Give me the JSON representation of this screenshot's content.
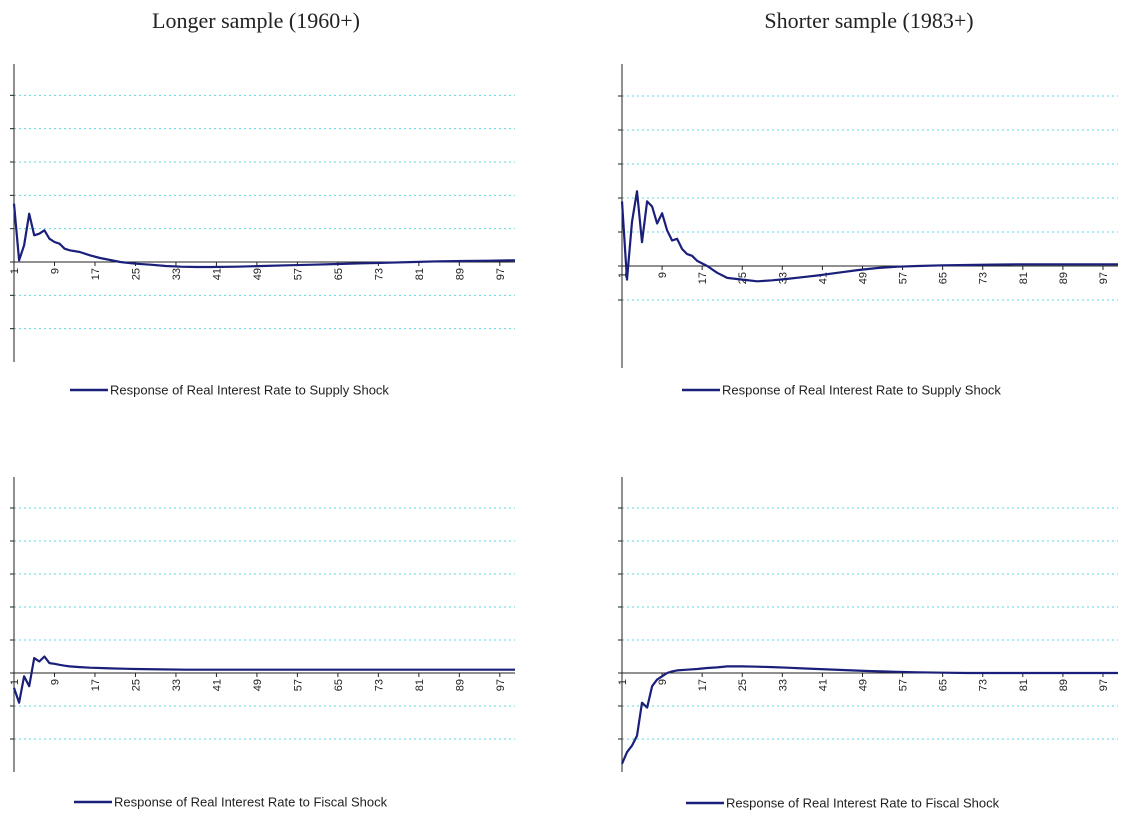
{
  "titles": {
    "left": "Longer sample (1960+)",
    "right": "Shorter sample (1983+)"
  },
  "colors": {
    "series": "#1a1f7a",
    "grid": "#5fd6e0",
    "axis": "#222222"
  },
  "chart_data": [
    {
      "type": "line",
      "legend": "Response of Real Interest Rate to Supply Shock",
      "x_ticks": [
        "1",
        "9",
        "17",
        "25",
        "33",
        "41",
        "49",
        "57",
        "65",
        "73",
        "81",
        "89",
        "97"
      ],
      "ylim": [
        -3,
        6
      ],
      "gridlines": [
        -2,
        -1,
        1,
        2,
        3,
        4,
        5
      ],
      "grid": true,
      "x": [
        1,
        2,
        3,
        4,
        5,
        6,
        7,
        8,
        9,
        10,
        11,
        12,
        14,
        16,
        18,
        20,
        22,
        25,
        28,
        31,
        34,
        37,
        40,
        45,
        50,
        55,
        60,
        65,
        70,
        75,
        80,
        85,
        90,
        95,
        100
      ],
      "y": [
        1.75,
        0.05,
        0.5,
        1.45,
        0.8,
        0.85,
        0.95,
        0.7,
        0.6,
        0.55,
        0.4,
        0.35,
        0.3,
        0.2,
        0.12,
        0.06,
        0.0,
        -0.05,
        -0.08,
        -0.12,
        -0.14,
        -0.15,
        -0.15,
        -0.14,
        -0.12,
        -0.1,
        -0.08,
        -0.06,
        -0.04,
        -0.02,
        0.0,
        0.02,
        0.03,
        0.04,
        0.05
      ]
    },
    {
      "type": "line",
      "legend": "Response of Real Interest Rate to Supply Shock",
      "x_ticks": [
        "1",
        "9",
        "17",
        "25",
        "33",
        "41",
        "49",
        "57",
        "65",
        "73",
        "81",
        "89",
        "97"
      ],
      "ylim": [
        -3,
        6
      ],
      "gridlines": [
        -1,
        1,
        2,
        3,
        4,
        5
      ],
      "grid": true,
      "x": [
        1,
        2,
        3,
        4,
        5,
        6,
        7,
        8,
        9,
        10,
        11,
        12,
        13,
        14,
        15,
        16,
        18,
        20,
        22,
        25,
        28,
        31,
        34,
        37,
        40,
        44,
        48,
        52,
        56,
        60,
        65,
        70,
        75,
        80,
        85,
        90,
        95,
        100
      ],
      "y": [
        1.9,
        -0.4,
        1.3,
        2.2,
        0.7,
        1.9,
        1.75,
        1.25,
        1.55,
        1.05,
        0.75,
        0.8,
        0.5,
        0.35,
        0.3,
        0.15,
        0.0,
        -0.2,
        -0.35,
        -0.4,
        -0.45,
        -0.42,
        -0.38,
        -0.33,
        -0.28,
        -0.2,
        -0.12,
        -0.06,
        -0.02,
        0.0,
        0.02,
        0.03,
        0.04,
        0.05,
        0.05,
        0.05,
        0.05,
        0.05
      ]
    },
    {
      "type": "line",
      "legend": "Response of Real Interest Rate to Fiscal Shock",
      "x_ticks": [
        "1",
        "9",
        "17",
        "25",
        "33",
        "41",
        "49",
        "57",
        "65",
        "73",
        "81",
        "89",
        "97"
      ],
      "ylim": [
        -3,
        6
      ],
      "gridlines": [
        -2,
        -1,
        1,
        2,
        3,
        4,
        5
      ],
      "grid": true,
      "x": [
        1,
        2,
        3,
        4,
        5,
        6,
        7,
        8,
        9,
        10,
        11,
        12,
        14,
        16,
        18,
        20,
        25,
        30,
        35,
        40,
        45,
        50,
        55,
        60,
        65,
        70,
        75,
        80,
        85,
        90,
        95,
        100
      ],
      "y": [
        -0.45,
        -0.9,
        -0.1,
        -0.4,
        0.45,
        0.35,
        0.5,
        0.3,
        0.28,
        0.25,
        0.22,
        0.2,
        0.18,
        0.16,
        0.15,
        0.14,
        0.12,
        0.11,
        0.1,
        0.1,
        0.1,
        0.1,
        0.1,
        0.1,
        0.1,
        0.1,
        0.1,
        0.1,
        0.1,
        0.1,
        0.1,
        0.1
      ]
    },
    {
      "type": "line",
      "legend": "Response of Real Interest Rate to Fiscal Shock",
      "x_ticks": [
        "1",
        "9",
        "17",
        "25",
        "33",
        "41",
        "49",
        "57",
        "65",
        "73",
        "81",
        "89",
        "97"
      ],
      "ylim": [
        -3,
        6
      ],
      "gridlines": [
        -2,
        -1,
        1,
        2,
        3,
        4,
        5
      ],
      "grid": true,
      "x": [
        1,
        2,
        3,
        4,
        5,
        6,
        7,
        8,
        9,
        10,
        11,
        12,
        14,
        16,
        18,
        20,
        22,
        25,
        28,
        31,
        34,
        37,
        40,
        45,
        50,
        55,
        60,
        65,
        70,
        75,
        80,
        85,
        90,
        95,
        100
      ],
      "y": [
        -2.75,
        -2.4,
        -2.2,
        -1.9,
        -0.9,
        -1.05,
        -0.4,
        -0.2,
        -0.1,
        0.0,
        0.05,
        0.08,
        0.1,
        0.12,
        0.15,
        0.17,
        0.2,
        0.2,
        0.19,
        0.18,
        0.16,
        0.14,
        0.12,
        0.09,
        0.06,
        0.04,
        0.02,
        0.01,
        0.0,
        0.0,
        0.0,
        0.0,
        0.0,
        0.0,
        0.0
      ]
    }
  ]
}
